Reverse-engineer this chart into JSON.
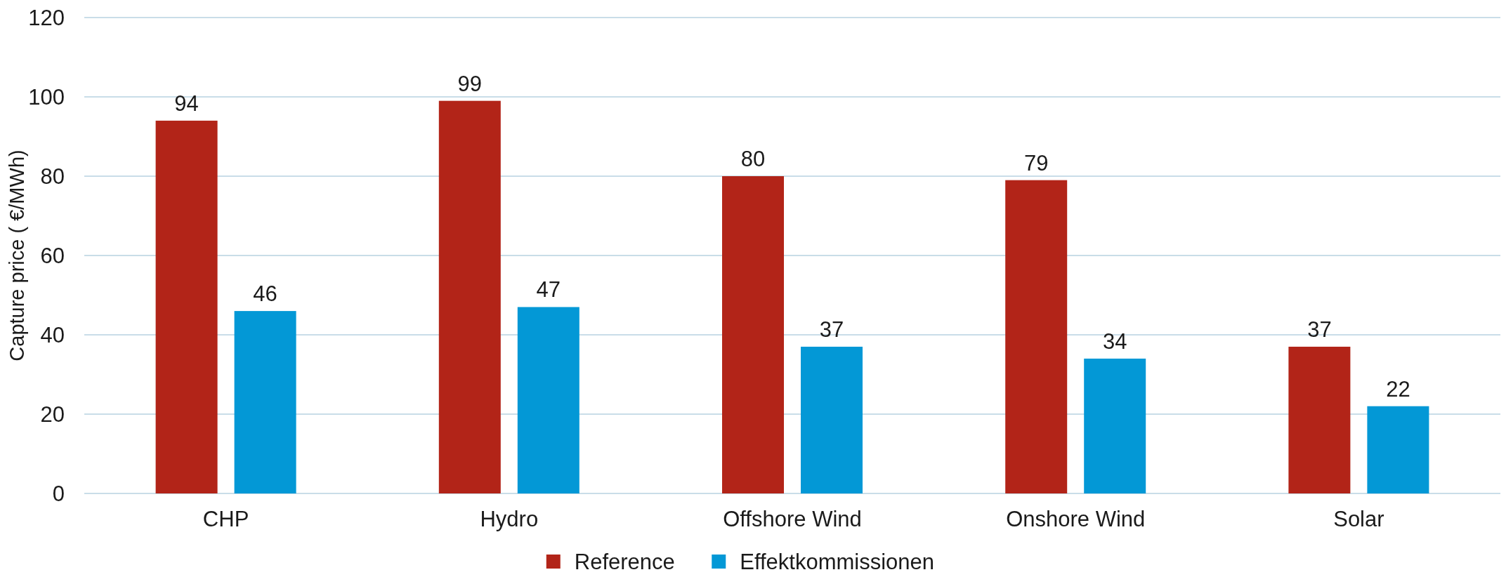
{
  "chart_data": {
    "type": "bar",
    "ylabel": "Capture price ( €/MWh)",
    "categories": [
      "CHP",
      "Hydro",
      "Offshore Wind",
      "Onshore Wind",
      "Solar"
    ],
    "series": [
      {
        "name": "Reference",
        "color": "#b22418",
        "values": [
          94,
          99,
          80,
          79,
          37
        ]
      },
      {
        "name": "Effektkommissionen",
        "color": "#0398d6",
        "values": [
          46,
          47,
          37,
          34,
          22
        ]
      }
    ],
    "ylim": [
      0,
      120
    ],
    "yticks": [
      0,
      20,
      40,
      60,
      80,
      100,
      120
    ],
    "grid": "y",
    "legend": "bottom",
    "data_labels": true
  }
}
